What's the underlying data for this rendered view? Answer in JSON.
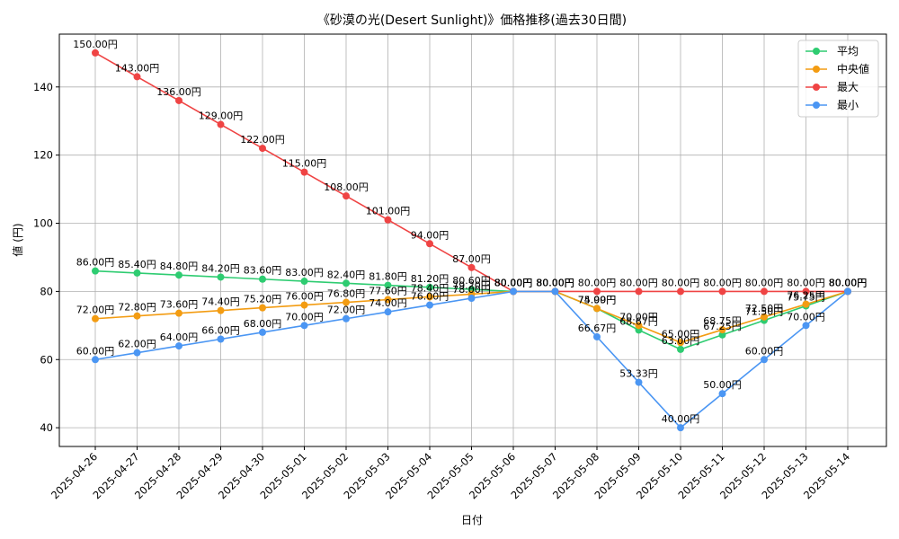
{
  "chart_data": {
    "type": "line",
    "title": "《砂漠の光(Desert Sunlight)》価格推移(過去30日間)",
    "xlabel": "日付",
    "ylabel": "値 (円)",
    "ylim": [
      34.5,
      155.5
    ],
    "yticks": [
      40,
      60,
      80,
      100,
      120,
      140
    ],
    "grid": true,
    "legend_position": "top-right",
    "label_suffix": "円",
    "categories": [
      "2025-04-26",
      "2025-04-27",
      "2025-04-28",
      "2025-04-29",
      "2025-04-30",
      "2025-05-01",
      "2025-05-02",
      "2025-05-03",
      "2025-05-04",
      "2025-05-05",
      "2025-05-06",
      "2025-05-07",
      "2025-05-08",
      "2025-05-09",
      "2025-05-10",
      "2025-05-11",
      "2025-05-12",
      "2025-05-13",
      "2025-05-14"
    ],
    "series": [
      {
        "name": "平均",
        "color": "#2ecc71",
        "values": [
          86.0,
          85.4,
          84.8,
          84.2,
          83.6,
          83.0,
          82.4,
          81.8,
          81.2,
          80.6,
          80.0,
          80.0,
          74.99,
          68.67,
          63.0,
          67.25,
          71.5,
          75.75,
          80.0
        ]
      },
      {
        "name": "中央値",
        "color": "#f39c12",
        "values": [
          72.0,
          72.8,
          73.6,
          74.4,
          75.2,
          76.0,
          76.8,
          77.6,
          78.4,
          79.2,
          80.0,
          80.0,
          75.0,
          70.0,
          65.0,
          68.75,
          72.5,
          76.25,
          80.0
        ]
      },
      {
        "name": "最大",
        "color": "#ef4444",
        "values": [
          150.0,
          143.0,
          136.0,
          129.0,
          122.0,
          115.0,
          108.0,
          101.0,
          94.0,
          87.0,
          80.0,
          80.0,
          80.0,
          80.0,
          80.0,
          80.0,
          80.0,
          80.0,
          80.0
        ]
      },
      {
        "name": "最小",
        "color": "#4b96f3",
        "values": [
          60.0,
          62.0,
          64.0,
          66.0,
          68.0,
          70.0,
          72.0,
          74.0,
          76.0,
          78.0,
          80.0,
          80.0,
          66.67,
          53.33,
          40.0,
          50.0,
          60.0,
          70.0,
          80.0
        ]
      }
    ]
  }
}
